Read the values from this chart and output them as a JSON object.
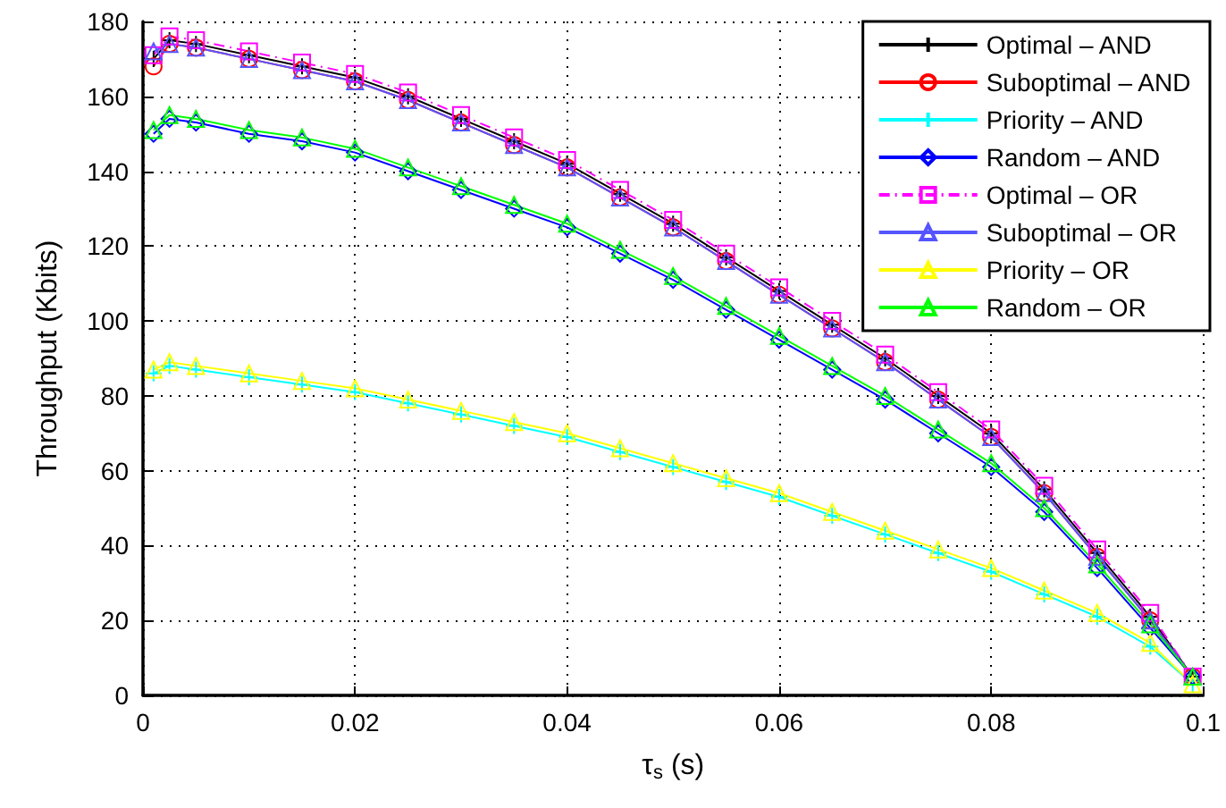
{
  "chart_data": {
    "type": "line",
    "xlabel": "τ$_{s}$ (s)",
    "ylabel": "Throughput (Kbits)",
    "x": [
      0.001,
      0.0025,
      0.005,
      0.01,
      0.015,
      0.02,
      0.025,
      0.03,
      0.035,
      0.04,
      0.045,
      0.05,
      0.055,
      0.06,
      0.065,
      0.07,
      0.075,
      0.08,
      0.085,
      0.09,
      0.095,
      0.099
    ],
    "series": [
      {
        "name": "Optimal – AND",
        "color": "#000000",
        "marker": "cross",
        "line_style": "solid",
        "values": [
          170,
          175,
          174,
          171,
          168,
          165,
          160,
          154,
          148,
          142,
          134,
          126,
          117,
          108,
          99,
          90,
          80,
          70,
          55,
          38,
          21,
          5
        ]
      },
      {
        "name": "Suboptimal – AND",
        "color": "#ff0000",
        "marker": "circle",
        "line_style": "solid",
        "values": [
          168,
          174,
          173,
          170,
          167,
          164,
          159,
          153,
          147,
          141,
          133,
          125,
          116,
          107,
          98,
          89,
          79,
          69,
          54,
          37,
          20,
          5
        ]
      },
      {
        "name": "Priority – AND",
        "color": "#00ffff",
        "marker": "cross",
        "line_style": "solid",
        "values": [
          86,
          88,
          87,
          85,
          83,
          81,
          78,
          75,
          72,
          69,
          65,
          61,
          57,
          53,
          48,
          43,
          38,
          33,
          27,
          21,
          13,
          3
        ]
      },
      {
        "name": "Random – AND",
        "color": "#0000ff",
        "marker": "diamond",
        "line_style": "solid",
        "values": [
          150,
          154,
          153,
          150,
          148,
          145,
          140,
          135,
          130,
          125,
          118,
          111,
          103,
          95,
          87,
          79,
          70,
          61,
          49,
          34,
          18,
          5
        ]
      },
      {
        "name": "Optimal – OR",
        "color": "#ff00ff",
        "marker": "square",
        "line_style": "dashed",
        "values": [
          171,
          176,
          175,
          172,
          169,
          166,
          161,
          155,
          149,
          143,
          135,
          127,
          118,
          109,
          100,
          91,
          81,
          71,
          56,
          39,
          22,
          5
        ]
      },
      {
        "name": "Suboptimal – OR",
        "color": "#5555ff",
        "marker": "triangle",
        "line_style": "solid",
        "values": [
          172,
          174,
          173,
          170,
          167,
          164,
          159,
          153,
          147,
          141,
          133,
          125,
          116,
          107,
          98,
          89,
          79,
          69,
          54,
          37,
          20,
          5
        ]
      },
      {
        "name": "Priority – OR",
        "color": "#ffff00",
        "marker": "triangle",
        "line_style": "solid",
        "values": [
          87,
          89,
          88,
          86,
          84,
          82,
          79,
          76,
          73,
          70,
          66,
          62,
          58,
          54,
          49,
          44,
          39,
          34,
          28,
          22,
          14,
          3
        ]
      },
      {
        "name": "Random – OR",
        "color": "#00ff00",
        "marker": "triangle",
        "line_style": "solid",
        "values": [
          151,
          155,
          154,
          151,
          149,
          146,
          141,
          136,
          131,
          126,
          119,
          112,
          104,
          96,
          88,
          80,
          71,
          62,
          50,
          35,
          19,
          5
        ]
      }
    ],
    "xlim": [
      0,
      0.1
    ],
    "xticks": [
      0,
      0.02,
      0.04,
      0.06,
      0.08,
      0.1
    ],
    "ylim": [
      0,
      180
    ],
    "yticks": [
      0,
      20,
      40,
      60,
      80,
      100,
      120,
      140,
      160,
      180
    ],
    "grid": true,
    "legend": "top right"
  }
}
